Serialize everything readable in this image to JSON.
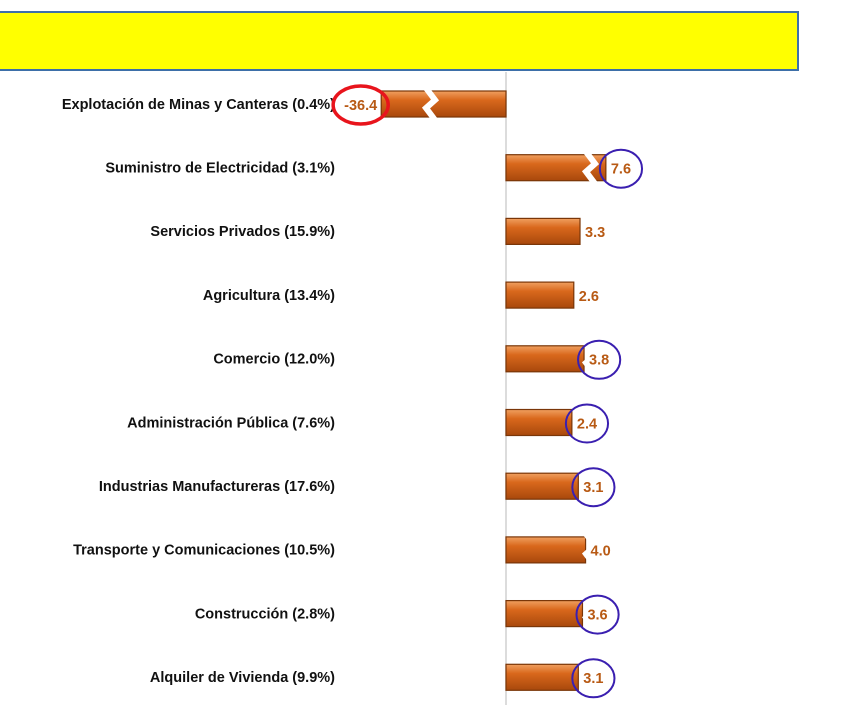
{
  "chart_data": {
    "type": "barh",
    "categories": [
      "Explotación de Minas y Canteras (0.4%)",
      "Suministro de Electricidad (3.1%)",
      "Servicios Privados (15.9%)",
      "Agricultura (13.4%)",
      "Comercio (12.0%)",
      "Administración Pública (7.6%)",
      "Industrias Manufactureras (17.6%)",
      "Transporte y Comunicaciones (10.5%)",
      "Construcción (2.8%)",
      "Alquiler de Vivienda (9.9%)"
    ],
    "values": [
      -36.4,
      7.6,
      3.3,
      2.6,
      3.8,
      2.4,
      3.1,
      4.0,
      3.6,
      3.1
    ],
    "value_labels": [
      "-36.4",
      "7.6",
      "3.3",
      "2.6",
      "3.8",
      "2.4",
      "3.1",
      "4.0",
      "3.6",
      "3.1"
    ],
    "color": "#d9681c",
    "label_circle_colors": [
      "#e8141c",
      "#3a1fb0",
      null,
      null,
      "#3a1fb0",
      "#3a1fb0",
      "#3a1fb0",
      null,
      "#3a1fb0",
      "#3a1fb0"
    ]
  }
}
